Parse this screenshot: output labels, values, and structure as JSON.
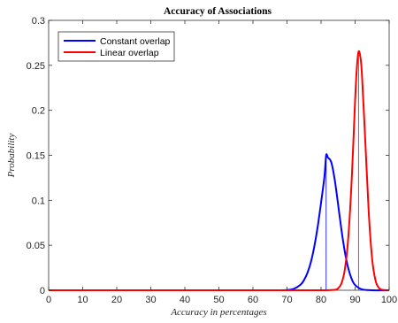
{
  "chart_data": {
    "type": "line",
    "title": "Accuracy of Associations",
    "xlabel": "Accuracy in percentages",
    "ylabel": "Probability",
    "xlim": [
      0,
      100
    ],
    "ylim": [
      0,
      0.3
    ],
    "xticks": [
      0,
      10,
      20,
      30,
      40,
      50,
      60,
      70,
      80,
      90,
      100
    ],
    "yticks": [
      0,
      0.05,
      0.1,
      0.15,
      0.2,
      0.25,
      0.3
    ],
    "ytick_labels": [
      "0",
      "0.05",
      "0.1",
      "0.15",
      "0.2",
      "0.25",
      "0.3"
    ],
    "grid": false,
    "legend_position": "top-left",
    "series": [
      {
        "name": "Constant overlap",
        "color": "#0000ff",
        "x": [
          0,
          10,
          20,
          30,
          40,
          50,
          60,
          65,
          70,
          72,
          74,
          75,
          76,
          77,
          78,
          79,
          80,
          81,
          81.5,
          82,
          83,
          84,
          85,
          86,
          87,
          88,
          89,
          90,
          92,
          95,
          100
        ],
        "y": [
          0,
          0,
          0,
          0,
          0,
          0,
          0,
          0,
          0.0003,
          0.0016,
          0.0063,
          0.0113,
          0.0193,
          0.0311,
          0.0483,
          0.0704,
          0.0974,
          0.1265,
          0.15,
          0.1476,
          0.1423,
          0.1232,
          0.0956,
          0.0669,
          0.0424,
          0.0243,
          0.0125,
          0.0058,
          0.001,
          0,
          0
        ],
        "marker_x": 81.5,
        "marker_y": 0.15
      },
      {
        "name": "Linear overlap",
        "color": "#ff0000",
        "x": [
          0,
          10,
          20,
          30,
          40,
          50,
          60,
          70,
          80,
          84,
          85,
          86,
          87,
          88,
          89,
          90,
          90.5,
          91,
          91.5,
          92,
          93,
          94,
          95,
          96,
          97,
          98,
          100
        ],
        "y": [
          0,
          0,
          0,
          0,
          0,
          0,
          0,
          0,
          0,
          0.0005,
          0.0021,
          0.0077,
          0.0234,
          0.0589,
          0.1227,
          0.2111,
          0.2467,
          0.265,
          0.2602,
          0.2403,
          0.1652,
          0.0868,
          0.035,
          0.0108,
          0.0026,
          0.0005,
          0
        ],
        "marker_x": 91,
        "marker_y": 0.265
      }
    ]
  }
}
